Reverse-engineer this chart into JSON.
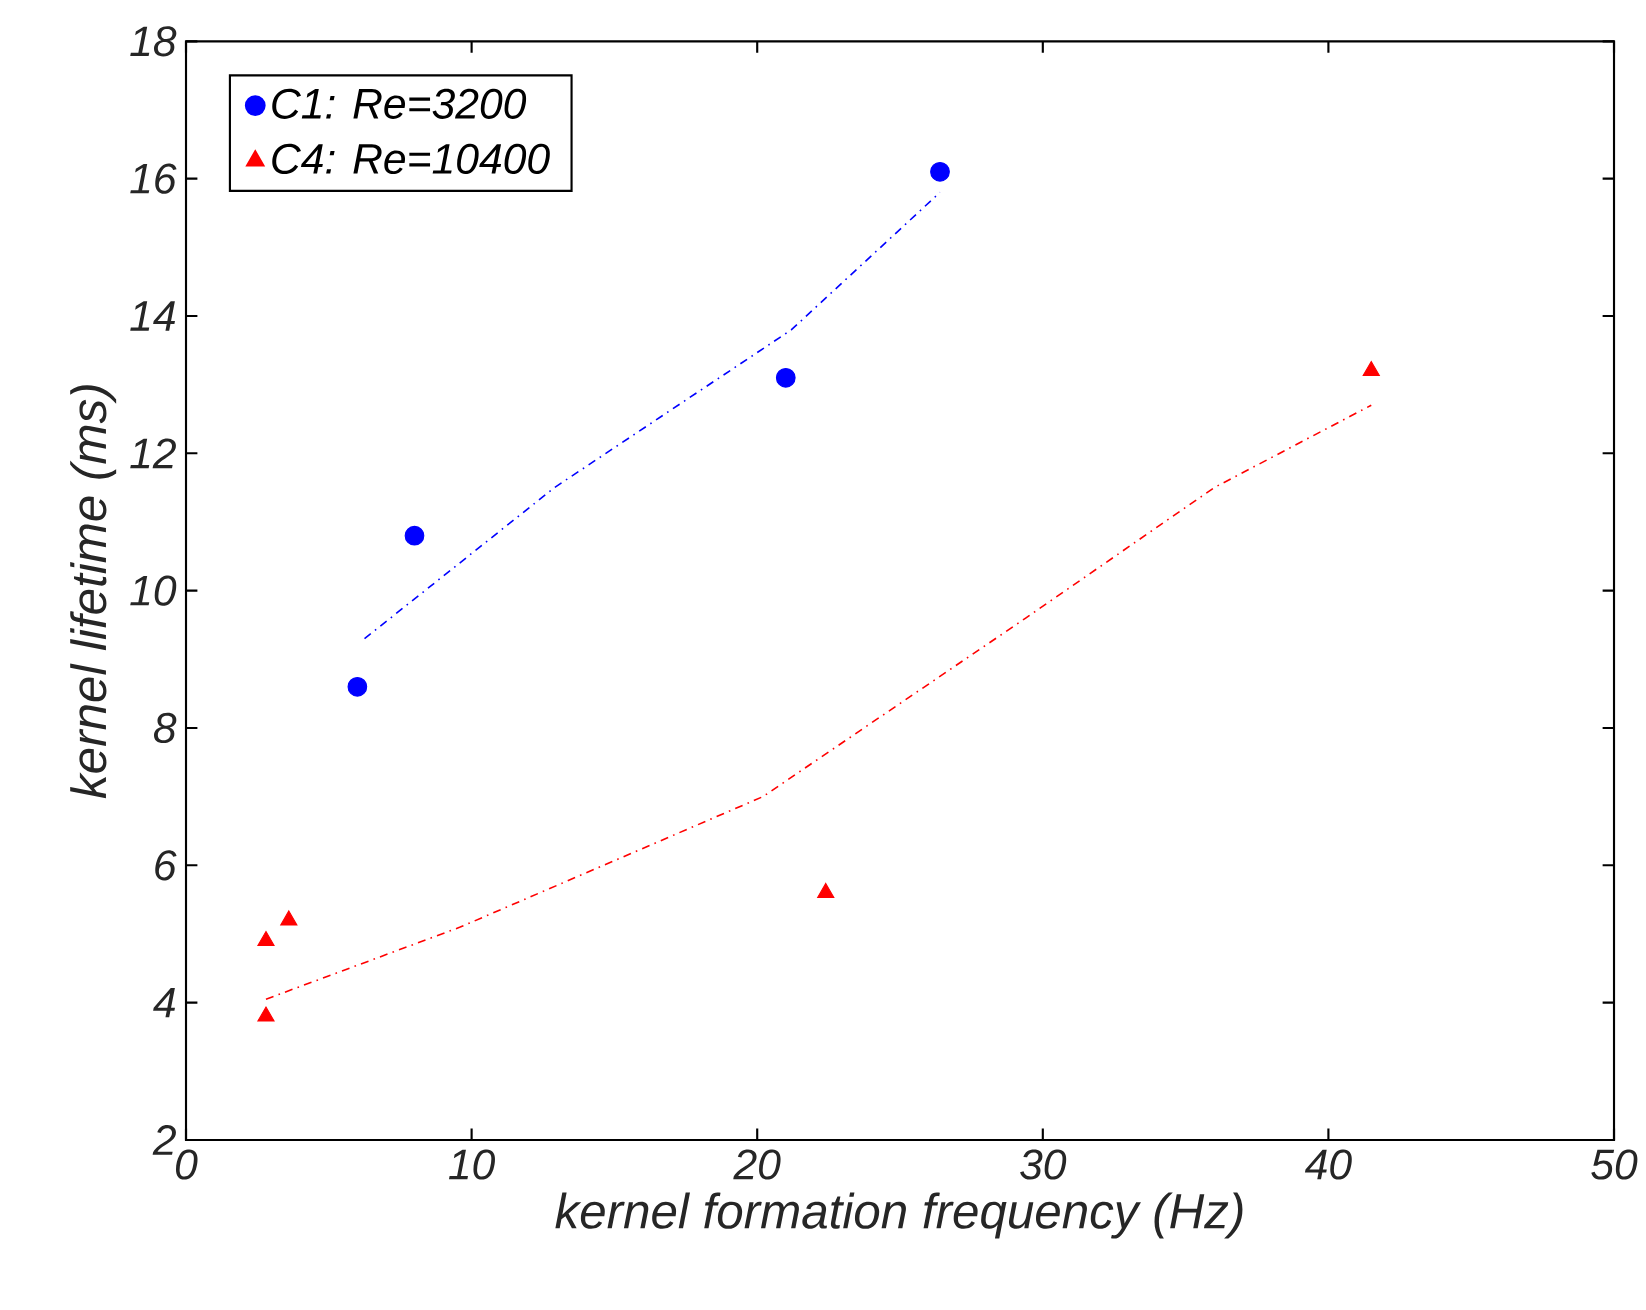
{
  "chart_data": {
    "type": "scatter",
    "xlabel": "kernel formation frequency (Hz)",
    "ylabel": "kernel lifetime (ms)",
    "xlim": [
      0,
      50
    ],
    "ylim": [
      2,
      18
    ],
    "xticks": [
      0,
      10,
      20,
      30,
      40,
      50
    ],
    "yticks": [
      2,
      4,
      6,
      8,
      10,
      12,
      14,
      16,
      18
    ],
    "grid": false,
    "legend": "top left",
    "series": [
      {
        "name": "C1: Re=3200",
        "marker": "circle",
        "color": "#0000ff",
        "x": [
          6.0,
          8.0,
          21.0,
          26.4
        ],
        "values": [
          8.6,
          10.8,
          13.1,
          16.1
        ]
      },
      {
        "name": "C4: Re=10400",
        "marker": "triangle",
        "color": "#ff0000",
        "x": [
          2.8,
          3.6,
          2.8,
          22.4,
          41.5
        ],
        "values": [
          4.9,
          5.2,
          3.8,
          5.6,
          13.2
        ]
      },
      {
        "type": "line",
        "marker": "none",
        "line_style": "dashdot",
        "color": "#0000ff",
        "x": [
          6.25,
          12.9,
          21.2,
          26.4
        ],
        "values": [
          9.3,
          11.5,
          13.8,
          15.8
        ]
      },
      {
        "type": "line",
        "marker": "none",
        "line_style": "dashdot",
        "color": "#ff0000",
        "x": [
          2.8,
          9.6,
          20.2,
          29.4,
          36.0,
          41.5
        ],
        "values": [
          4.05,
          5.1,
          7.0,
          9.6,
          11.5,
          12.7
        ]
      }
    ]
  }
}
